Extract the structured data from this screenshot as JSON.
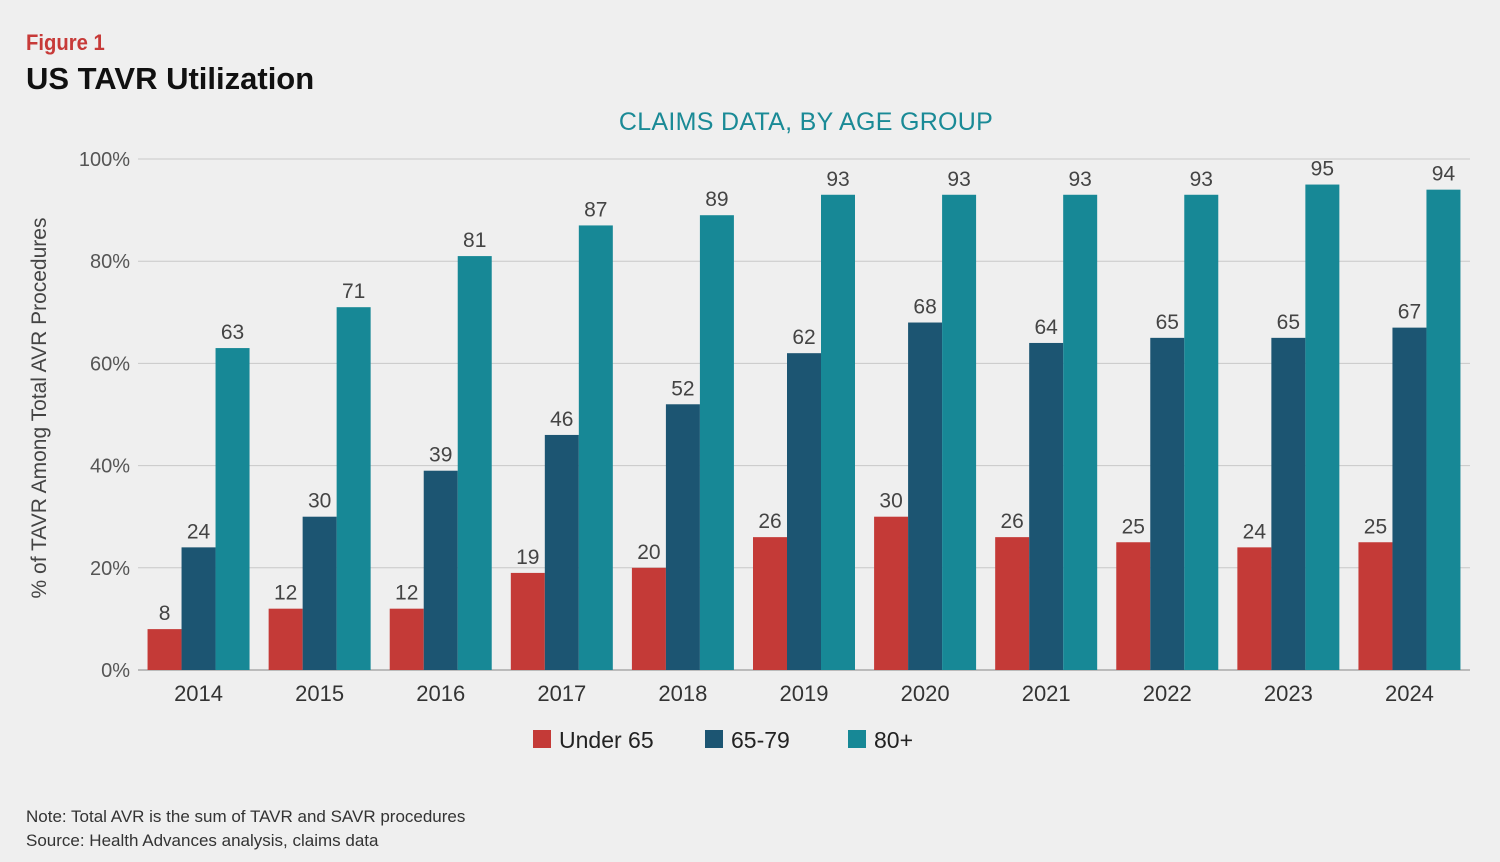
{
  "header": {
    "figure_label": "Figure 1",
    "title": "US TAVR Utilization"
  },
  "chart_data": {
    "type": "bar",
    "subtitle": "CLAIMS DATA, BY AGE GROUP",
    "ylabel": "% of TAVR Among Total AVR Procedures",
    "xlabel": "",
    "ylim": [
      0,
      100
    ],
    "yticks": [
      "0%",
      "20%",
      "40%",
      "60%",
      "80%",
      "100%"
    ],
    "grid": true,
    "legend_position": "bottom",
    "categories": [
      "2014",
      "2015",
      "2016",
      "2017",
      "2018",
      "2019",
      "2020",
      "2021",
      "2022",
      "2023",
      "2024"
    ],
    "series": [
      {
        "name": "Under 65",
        "color": "#c43a37",
        "values": [
          8,
          12,
          12,
          19,
          20,
          26,
          30,
          26,
          25,
          24,
          25
        ]
      },
      {
        "name": "65-79",
        "color": "#1c5572",
        "values": [
          24,
          30,
          39,
          46,
          52,
          62,
          68,
          64,
          65,
          65,
          67
        ]
      },
      {
        "name": "80+",
        "color": "#178896",
        "values": [
          63,
          71,
          81,
          87,
          89,
          93,
          93,
          93,
          93,
          95,
          94
        ]
      }
    ]
  },
  "footer": {
    "note": "Note: Total AVR is the sum of TAVR and SAVR procedures",
    "source": "Source: Health Advances analysis, claims data"
  }
}
